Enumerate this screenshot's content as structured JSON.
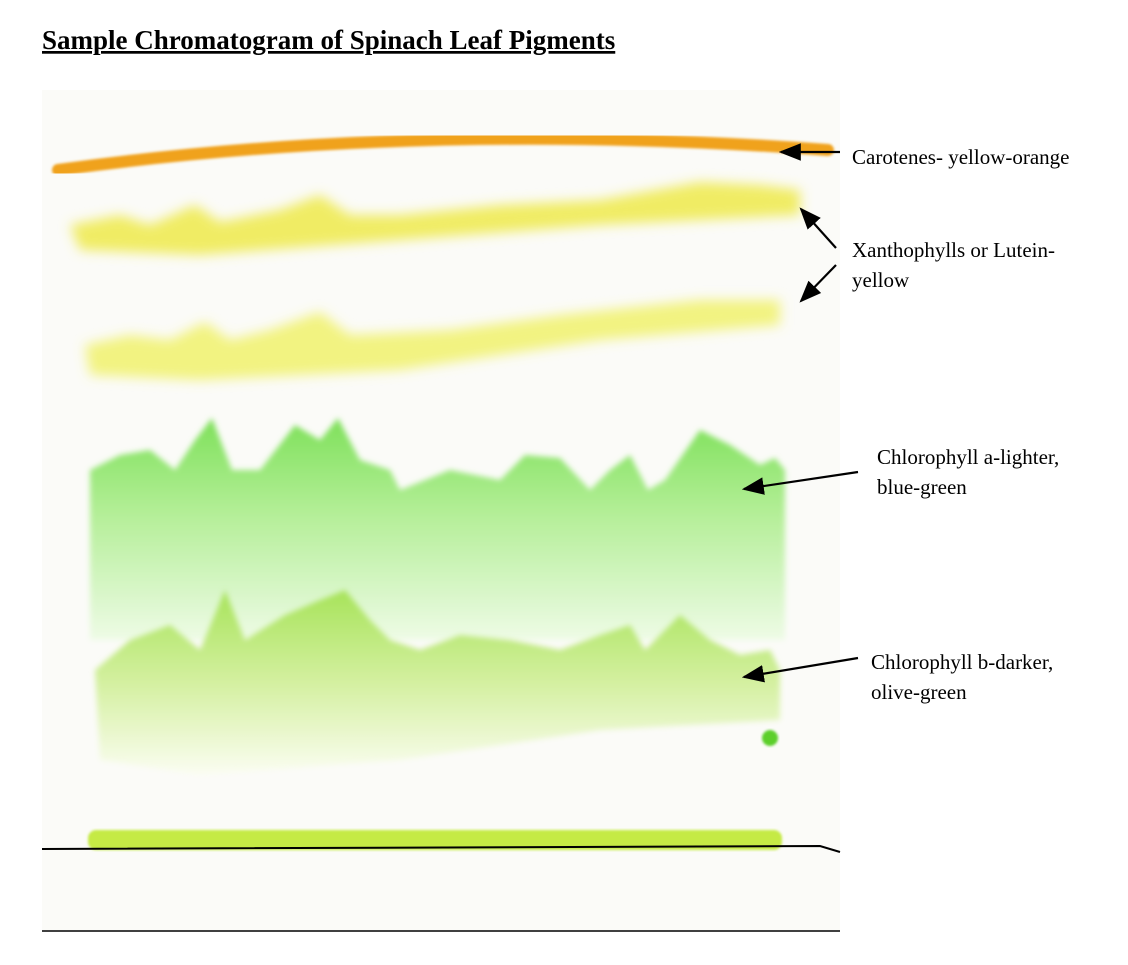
{
  "title": "Sample Chromatogram of Spinach Leaf Pigments",
  "labels": [
    {
      "lines": [
        "Carotenes- yellow-orange"
      ]
    },
    {
      "lines": [
        "Xanthophylls or Lutein-",
        "yellow"
      ]
    },
    {
      "lines": [
        "Chlorophyll a-lighter,",
        "blue-green"
      ]
    },
    {
      "lines": [
        "Chlorophyll b-darker,",
        "olive-green"
      ]
    }
  ]
}
